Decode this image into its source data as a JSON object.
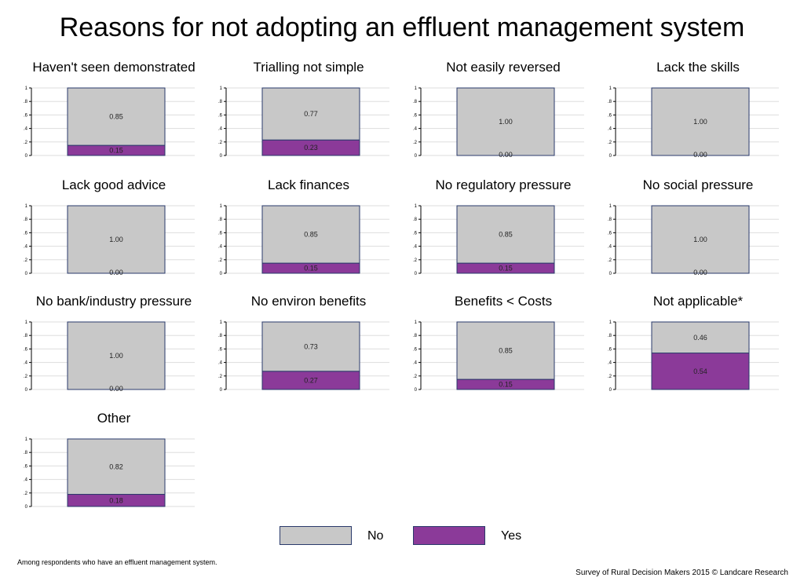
{
  "title": "Reasons for not adopting an effluent management system",
  "colors": {
    "no": "#c8c8c8",
    "yes": "#8b3a99",
    "border": "#2a3a6b",
    "grid": "#dddddd"
  },
  "legend": {
    "no_label": "No",
    "yes_label": "Yes"
  },
  "footnote": "Among respondents who have an effluent management system.",
  "credit": "Survey of Rural Decision Makers 2015 © Landcare Research",
  "chart_data": {
    "type": "bar",
    "stacked": true,
    "ylim": [
      0,
      1
    ],
    "yticks": [
      "0",
      ".2",
      ".4",
      ".6",
      ".8",
      "1"
    ],
    "series_names": [
      "No",
      "Yes"
    ],
    "panels": [
      {
        "title": "Haven't seen demonstrated",
        "no": 0.85,
        "yes": 0.15,
        "no_label": "0.85",
        "yes_label": "0.15"
      },
      {
        "title": "Trialling not simple",
        "no": 0.77,
        "yes": 0.23,
        "no_label": "0.77",
        "yes_label": "0.23"
      },
      {
        "title": "Not easily reversed",
        "no": 1.0,
        "yes": 0.0,
        "no_label": "1.00",
        "yes_label": "0.00"
      },
      {
        "title": "Lack the skills",
        "no": 1.0,
        "yes": 0.0,
        "no_label": "1.00",
        "yes_label": "0.00"
      },
      {
        "title": "Lack good advice",
        "no": 1.0,
        "yes": 0.0,
        "no_label": "1.00",
        "yes_label": "0.00"
      },
      {
        "title": "Lack finances",
        "no": 0.85,
        "yes": 0.15,
        "no_label": "0.85",
        "yes_label": "0.15"
      },
      {
        "title": "No regulatory pressure",
        "no": 0.85,
        "yes": 0.15,
        "no_label": "0.85",
        "yes_label": "0.15"
      },
      {
        "title": "No social pressure",
        "no": 1.0,
        "yes": 0.0,
        "no_label": "1.00",
        "yes_label": "0.00"
      },
      {
        "title": "No bank/industry pressure",
        "no": 1.0,
        "yes": 0.0,
        "no_label": "1.00",
        "yes_label": "0.00"
      },
      {
        "title": "No environ benefits",
        "no": 0.73,
        "yes": 0.27,
        "no_label": "0.73",
        "yes_label": "0.27"
      },
      {
        "title": "Benefits < Costs",
        "no": 0.85,
        "yes": 0.15,
        "no_label": "0.85",
        "yes_label": "0.15"
      },
      {
        "title": "Not applicable*",
        "no": 0.46,
        "yes": 0.54,
        "no_label": "0.46",
        "yes_label": "0.54"
      },
      {
        "title": "Other",
        "no": 0.82,
        "yes": 0.18,
        "no_label": "0.82",
        "yes_label": "0.18"
      }
    ]
  }
}
